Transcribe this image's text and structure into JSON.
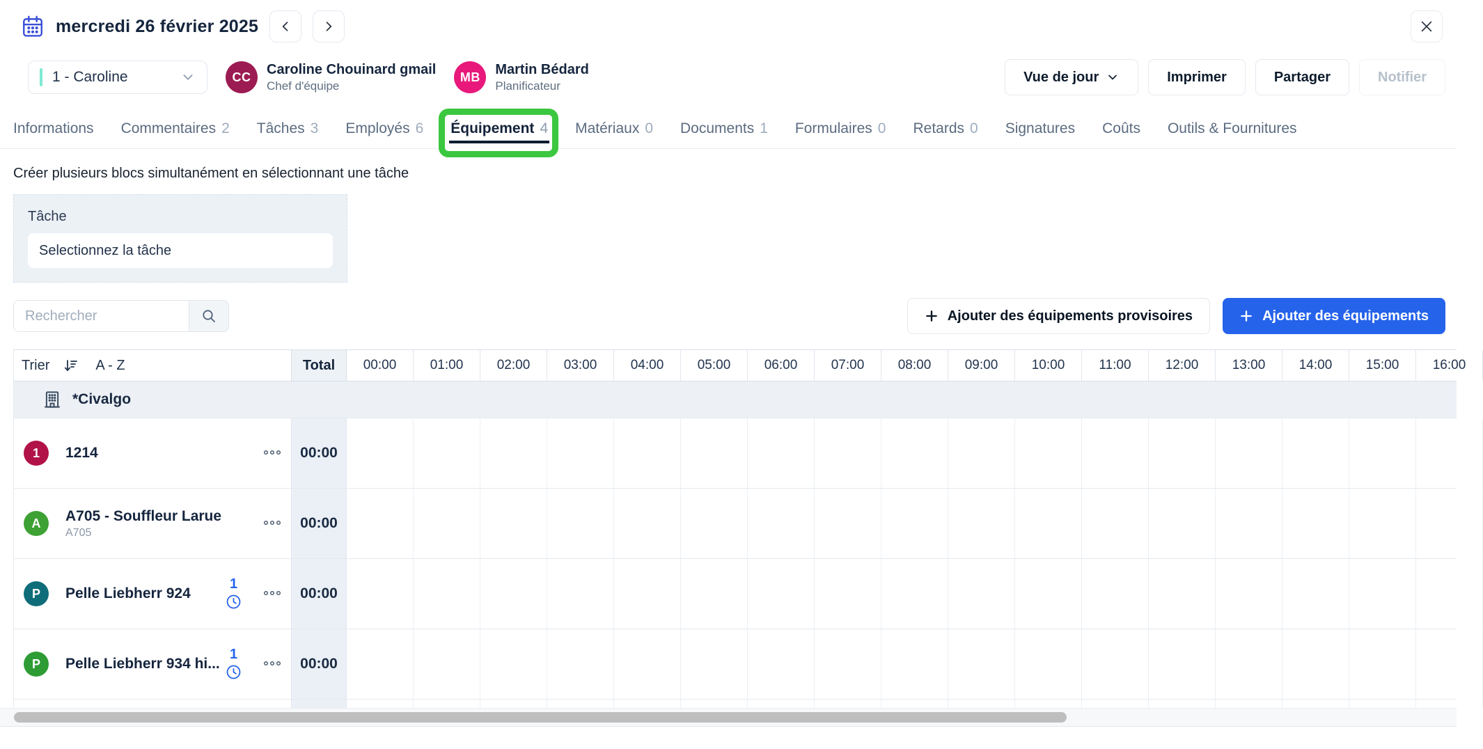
{
  "colors": {
    "highlight_green": "#3BC73F",
    "primary_blue": "#2563EB",
    "teal_accent": "#7FE9D2",
    "calendar_blue": "#3A4FD8",
    "pending_blue": "#2563EB"
  },
  "header": {
    "date_label": "mercredi 26 février 2025",
    "view_button": "Vue de jour",
    "print_button": "Imprimer",
    "share_button": "Partager",
    "notify_button": "Notifier"
  },
  "team": {
    "selector_value": "1 - Caroline",
    "members": [
      {
        "initials": "CC",
        "name": "Caroline Chouinard gmail",
        "role": "Chef d'équipe",
        "color": "#9C1B52"
      },
      {
        "initials": "MB",
        "name": "Martin Bédard",
        "role": "Planificateur",
        "color": "#E8197B"
      }
    ]
  },
  "tabs": [
    {
      "label": "Informations",
      "count": ""
    },
    {
      "label": "Commentaires",
      "count": "2"
    },
    {
      "label": "Tâches",
      "count": "3"
    },
    {
      "label": "Employés",
      "count": "6"
    },
    {
      "label": "Équipement",
      "count": "4",
      "active": true,
      "highlighted": true
    },
    {
      "label": "Matériaux",
      "count": "0"
    },
    {
      "label": "Documents",
      "count": "1"
    },
    {
      "label": "Formulaires",
      "count": "0"
    },
    {
      "label": "Retards",
      "count": "0"
    },
    {
      "label": "Signatures",
      "count": ""
    },
    {
      "label": "Coûts",
      "count": ""
    },
    {
      "label": "Outils & Fournitures",
      "count": ""
    }
  ],
  "task_panel": {
    "hint": "Créer plusieurs blocs simultanément en sélectionnant une tâche",
    "label": "Tâche",
    "select_value": "Selectionnez la tâche"
  },
  "toolbar": {
    "search_placeholder": "Rechercher",
    "add_provisional_label": "Ajouter des équipements provisoires",
    "add_equipment_label": "Ajouter des équipements"
  },
  "schedule": {
    "sort_label": "Trier",
    "sort_order": "A - Z",
    "total_header": "Total",
    "hours": [
      "00:00",
      "01:00",
      "02:00",
      "03:00",
      "04:00",
      "05:00",
      "06:00",
      "07:00",
      "08:00",
      "09:00",
      "10:00",
      "11:00",
      "12:00",
      "13:00",
      "14:00",
      "15:00",
      "16:00"
    ],
    "group_name": "*Civalgo",
    "rows": [
      {
        "badge_text": "1",
        "badge_color": "#B11247",
        "name": "1214",
        "subtitle": "",
        "pending_count": "",
        "total": "00:00"
      },
      {
        "badge_text": "A",
        "badge_color": "#3EA133",
        "name": "A705 - Souffleur Larue",
        "subtitle": "A705",
        "pending_count": "",
        "total": "00:00"
      },
      {
        "badge_text": "P",
        "badge_color": "#0F6D79",
        "name": "Pelle Liebherr 924",
        "subtitle": "",
        "pending_count": "1",
        "total": "00:00"
      },
      {
        "badge_text": "P",
        "badge_color": "#2E9C35",
        "name": "Pelle Liebherr 934 hi...",
        "subtitle": "",
        "pending_count": "1",
        "total": "00:00"
      }
    ]
  }
}
